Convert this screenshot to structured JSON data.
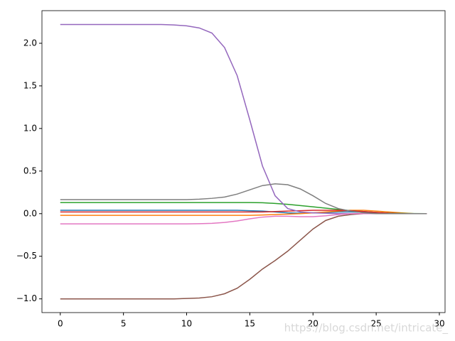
{
  "chart_data": {
    "type": "line",
    "x": [
      0,
      1,
      2,
      3,
      4,
      5,
      6,
      7,
      8,
      9,
      10,
      11,
      12,
      13,
      14,
      15,
      16,
      17,
      18,
      19,
      20,
      21,
      22,
      23,
      24,
      25,
      26,
      27,
      28,
      29
    ],
    "series": [
      {
        "color": "#1f77b4",
        "values": [
          0.04,
          0.04,
          0.04,
          0.04,
          0.04,
          0.04,
          0.04,
          0.04,
          0.04,
          0.04,
          0.04,
          0.04,
          0.04,
          0.04,
          0.04,
          0.035,
          0.03,
          0.02,
          0.01,
          0.005,
          0.01,
          0.015,
          0.02,
          0.02,
          0.015,
          0.01,
          0.005,
          0,
          0,
          0
        ]
      },
      {
        "color": "#ff7f0e",
        "values": [
          -0.02,
          -0.02,
          -0.02,
          -0.02,
          -0.02,
          -0.02,
          -0.02,
          -0.02,
          -0.02,
          -0.02,
          -0.02,
          -0.02,
          -0.02,
          -0.02,
          -0.02,
          -0.02,
          -0.015,
          -0.01,
          -0.005,
          0,
          0.01,
          0.02,
          0.03,
          0.04,
          0.04,
          0.03,
          0.02,
          0.01,
          0,
          0
        ]
      },
      {
        "color": "#2ca02c",
        "values": [
          0.13,
          0.13,
          0.13,
          0.13,
          0.13,
          0.13,
          0.13,
          0.13,
          0.13,
          0.13,
          0.13,
          0.13,
          0.13,
          0.13,
          0.13,
          0.13,
          0.128,
          0.12,
          0.11,
          0.095,
          0.08,
          0.065,
          0.05,
          0.035,
          0.025,
          0.015,
          0.008,
          0.003,
          0.001,
          0
        ]
      },
      {
        "color": "#d62728",
        "values": [
          0.02,
          0.02,
          0.02,
          0.02,
          0.02,
          0.02,
          0.02,
          0.02,
          0.02,
          0.02,
          0.02,
          0.02,
          0.02,
          0.02,
          0.02,
          0.02,
          0.02,
          0.025,
          0.03,
          0.035,
          0.04,
          0.04,
          0.04,
          0.035,
          0.025,
          0.015,
          0.005,
          0,
          0,
          0
        ]
      },
      {
        "color": "#9467bd",
        "values": [
          2.22,
          2.22,
          2.22,
          2.22,
          2.22,
          2.22,
          2.22,
          2.22,
          2.22,
          2.215,
          2.205,
          2.18,
          2.12,
          1.95,
          1.62,
          1.1,
          0.56,
          0.21,
          0.06,
          0.02,
          0.01,
          0.005,
          0,
          0,
          0,
          0,
          0,
          0,
          0,
          0
        ]
      },
      {
        "color": "#8c564b",
        "values": [
          -1,
          -1,
          -1,
          -1,
          -1,
          -1,
          -1,
          -1,
          -1,
          -1,
          -0.995,
          -0.99,
          -0.975,
          -0.94,
          -0.875,
          -0.77,
          -0.65,
          -0.55,
          -0.44,
          -0.31,
          -0.18,
          -0.08,
          -0.03,
          -0.01,
          0,
          0,
          0,
          0,
          0,
          0
        ]
      },
      {
        "color": "#e377c2",
        "values": [
          -0.12,
          -0.12,
          -0.12,
          -0.12,
          -0.12,
          -0.12,
          -0.12,
          -0.12,
          -0.12,
          -0.12,
          -0.12,
          -0.118,
          -0.113,
          -0.103,
          -0.085,
          -0.06,
          -0.04,
          -0.03,
          -0.03,
          -0.035,
          -0.035,
          -0.025,
          -0.01,
          0,
          0,
          0,
          0,
          0,
          0,
          0
        ]
      },
      {
        "color": "#7f7f7f",
        "values": [
          0.165,
          0.165,
          0.165,
          0.165,
          0.165,
          0.165,
          0.165,
          0.165,
          0.165,
          0.165,
          0.165,
          0.17,
          0.18,
          0.195,
          0.23,
          0.28,
          0.33,
          0.35,
          0.34,
          0.29,
          0.21,
          0.12,
          0.06,
          0.03,
          0.01,
          0,
          0,
          0,
          0,
          0
        ]
      }
    ],
    "xlim": [
      -1.45,
      30.45
    ],
    "xticks": [
      0,
      5,
      10,
      15,
      20,
      25,
      30
    ],
    "ylim": [
      -1.161,
      2.383
    ],
    "yticks": [
      {
        "value": -1,
        "label": "−1.0"
      },
      {
        "value": -0.5,
        "label": "−0.5"
      },
      {
        "value": 0,
        "label": "0.0"
      },
      0.5,
      {
        "value": 1,
        "label": "1.0"
      },
      1.5,
      {
        "value": 2,
        "label": "2.0"
      }
    ]
  },
  "watermark": "https://blog.csdn.net/intricate_"
}
